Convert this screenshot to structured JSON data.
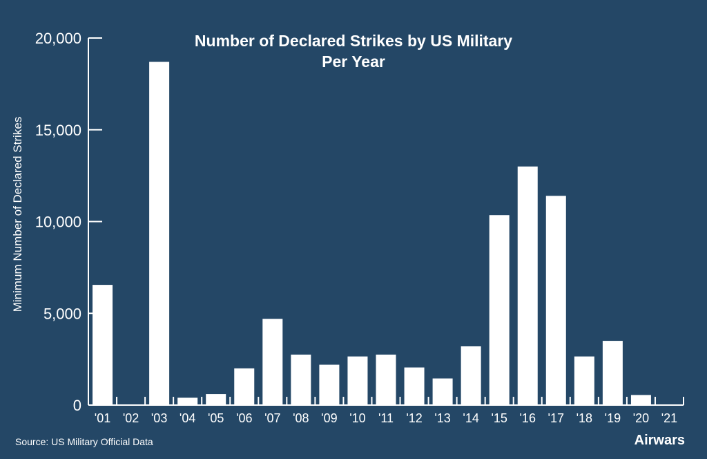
{
  "colors": {
    "background": "#244766",
    "bars": "#ffffff",
    "text": "#ffffff"
  },
  "chart_data": {
    "type": "bar",
    "title": "Number of Declared Strikes by US Military",
    "subtitle": "Per Year",
    "ylabel": "Minimum Number of Declared Strikes",
    "xlabel": "",
    "categories": [
      "'01",
      "'02",
      "'03",
      "'04",
      "'05",
      "'06",
      "'07",
      "'08",
      "'09",
      "'10",
      "'11",
      "'12",
      "'13",
      "'14",
      "'15",
      "'16",
      "'17",
      "'18",
      "'19",
      "'20",
      "'21"
    ],
    "values": [
      6550,
      0,
      18700,
      400,
      600,
      2000,
      4700,
      2750,
      2200,
      2650,
      2750,
      2050,
      1450,
      3200,
      10350,
      13000,
      11400,
      2650,
      3500,
      550,
      0
    ],
    "ylim": [
      0,
      20000
    ],
    "yticks": [
      0,
      5000,
      10000,
      15000,
      20000
    ],
    "ytick_labels": [
      "0",
      "5,000",
      "10,000",
      "15,000",
      "20,000"
    ],
    "grid": false
  },
  "footer": {
    "source": "Source: US Military Official Data",
    "brand": "Airwars"
  }
}
